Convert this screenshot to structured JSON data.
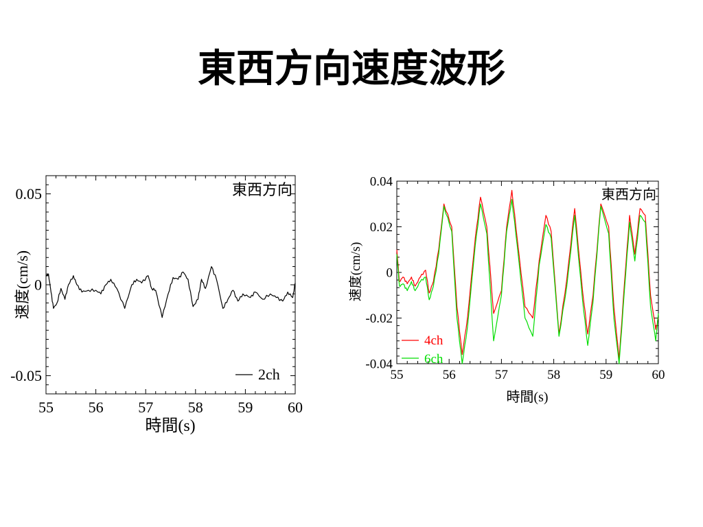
{
  "slide": {
    "title": "東西方向速度波形"
  },
  "chart_data": [
    {
      "type": "line",
      "annotation": "東西方向",
      "xlabel": "時間(s)",
      "ylabel": "速度(cm/s)",
      "xlim": [
        55,
        60
      ],
      "ylim": [
        -0.06,
        0.06
      ],
      "xticks": [
        55,
        56,
        57,
        58,
        59,
        60
      ],
      "xtick_labels": [
        "55",
        "56",
        "57",
        "58",
        "59",
        "60"
      ],
      "yticks": [
        -0.05,
        0,
        0.05
      ],
      "ytick_labels": [
        "-0.05",
        "0",
        "0.05"
      ],
      "legend_position": "bottom-right",
      "grid": false,
      "series": [
        {
          "name": "2ch",
          "color": "#000000",
          "x": [
            55.0,
            55.05,
            55.1,
            55.15,
            55.22,
            55.3,
            55.38,
            55.45,
            55.55,
            55.62,
            55.72,
            55.85,
            56.0,
            56.1,
            56.2,
            56.3,
            56.42,
            56.58,
            56.72,
            56.82,
            56.92,
            57.05,
            57.12,
            57.2,
            57.33,
            57.45,
            57.55,
            57.65,
            57.75,
            57.85,
            57.95,
            58.05,
            58.12,
            58.2,
            58.32,
            58.42,
            58.55,
            58.65,
            58.75,
            58.85,
            58.95,
            59.1,
            59.2,
            59.35,
            59.5,
            59.62,
            59.75,
            59.85,
            59.95,
            60.0
          ],
          "y": [
            0.005,
            0.006,
            -0.004,
            -0.013,
            -0.01,
            -0.002,
            -0.008,
            0.0,
            0.005,
            0.0,
            -0.004,
            -0.003,
            -0.003,
            -0.005,
            0.0,
            0.003,
            -0.002,
            -0.013,
            0.0,
            0.003,
            0.001,
            0.005,
            -0.002,
            -0.003,
            -0.018,
            -0.005,
            0.004,
            0.003,
            0.007,
            0.003,
            -0.012,
            -0.008,
            0.003,
            -0.002,
            0.01,
            0.003,
            -0.013,
            -0.008,
            -0.003,
            -0.009,
            -0.005,
            -0.007,
            -0.004,
            -0.008,
            -0.005,
            -0.007,
            -0.009,
            -0.004,
            -0.007,
            0.001
          ]
        }
      ]
    },
    {
      "type": "line",
      "annotation": "東西方向",
      "xlabel": "時間(s)",
      "ylabel": "速度(cm/s)",
      "xlim": [
        55,
        60
      ],
      "ylim": [
        -0.04,
        0.04
      ],
      "xticks": [
        55,
        56,
        57,
        58,
        59,
        60
      ],
      "xtick_labels": [
        "55",
        "56",
        "57",
        "58",
        "59",
        "60"
      ],
      "yticks": [
        -0.04,
        -0.02,
        0,
        0.02,
        0.04
      ],
      "ytick_labels": [
        "-0.04",
        "-0.02",
        "0",
        "0.02",
        "0.04"
      ],
      "legend_position": "bottom-left",
      "grid": false,
      "series": [
        {
          "name": "4ch",
          "color": "#ff0000",
          "x": [
            55.0,
            55.05,
            55.12,
            55.2,
            55.28,
            55.35,
            55.45,
            55.55,
            55.62,
            55.7,
            55.8,
            55.9,
            56.05,
            56.15,
            56.25,
            56.35,
            56.5,
            56.6,
            56.72,
            56.85,
            57.0,
            57.1,
            57.2,
            57.3,
            57.45,
            57.6,
            57.72,
            57.85,
            57.95,
            58.1,
            58.25,
            58.4,
            58.55,
            58.65,
            58.75,
            58.9,
            59.05,
            59.15,
            59.25,
            59.35,
            59.45,
            59.55,
            59.65,
            59.75,
            59.85,
            59.95,
            60.0
          ],
          "y": [
            0.01,
            -0.004,
            -0.002,
            -0.005,
            -0.002,
            -0.006,
            -0.002,
            0.001,
            -0.009,
            -0.004,
            0.01,
            0.03,
            0.02,
            -0.015,
            -0.036,
            -0.02,
            0.015,
            0.033,
            0.02,
            -0.018,
            -0.008,
            0.02,
            0.036,
            0.015,
            -0.015,
            -0.02,
            0.005,
            0.025,
            0.018,
            -0.027,
            -0.003,
            0.028,
            -0.008,
            -0.027,
            -0.01,
            0.03,
            0.02,
            -0.015,
            -0.038,
            -0.005,
            0.025,
            0.008,
            0.028,
            0.025,
            -0.01,
            -0.025,
            -0.02
          ],
          "interpolated": true
        },
        {
          "name": "6ch",
          "color": "#00dd00",
          "x": [
            55.0,
            55.05,
            55.12,
            55.2,
            55.28,
            55.35,
            55.45,
            55.55,
            55.62,
            55.7,
            55.8,
            55.9,
            56.05,
            56.15,
            56.25,
            56.35,
            56.5,
            56.6,
            56.72,
            56.85,
            57.0,
            57.1,
            57.2,
            57.3,
            57.45,
            57.6,
            57.72,
            57.85,
            57.95,
            58.1,
            58.25,
            58.4,
            58.55,
            58.65,
            58.75,
            58.9,
            59.05,
            59.15,
            59.25,
            59.35,
            59.45,
            59.55,
            59.65,
            59.75,
            59.85,
            59.95,
            60.0
          ],
          "y": [
            0.008,
            -0.006,
            -0.005,
            -0.008,
            -0.004,
            -0.008,
            -0.004,
            -0.002,
            -0.012,
            -0.006,
            0.008,
            0.029,
            0.018,
            -0.02,
            -0.04,
            -0.024,
            0.012,
            0.03,
            0.017,
            -0.03,
            -0.01,
            0.018,
            0.032,
            0.012,
            -0.02,
            -0.028,
            0.003,
            0.021,
            0.015,
            -0.028,
            -0.006,
            0.025,
            -0.012,
            -0.032,
            -0.013,
            0.029,
            0.017,
            -0.02,
            -0.04,
            -0.008,
            0.022,
            0.005,
            0.025,
            0.022,
            -0.015,
            -0.03,
            -0.018
          ],
          "interpolated": true
        }
      ]
    }
  ]
}
